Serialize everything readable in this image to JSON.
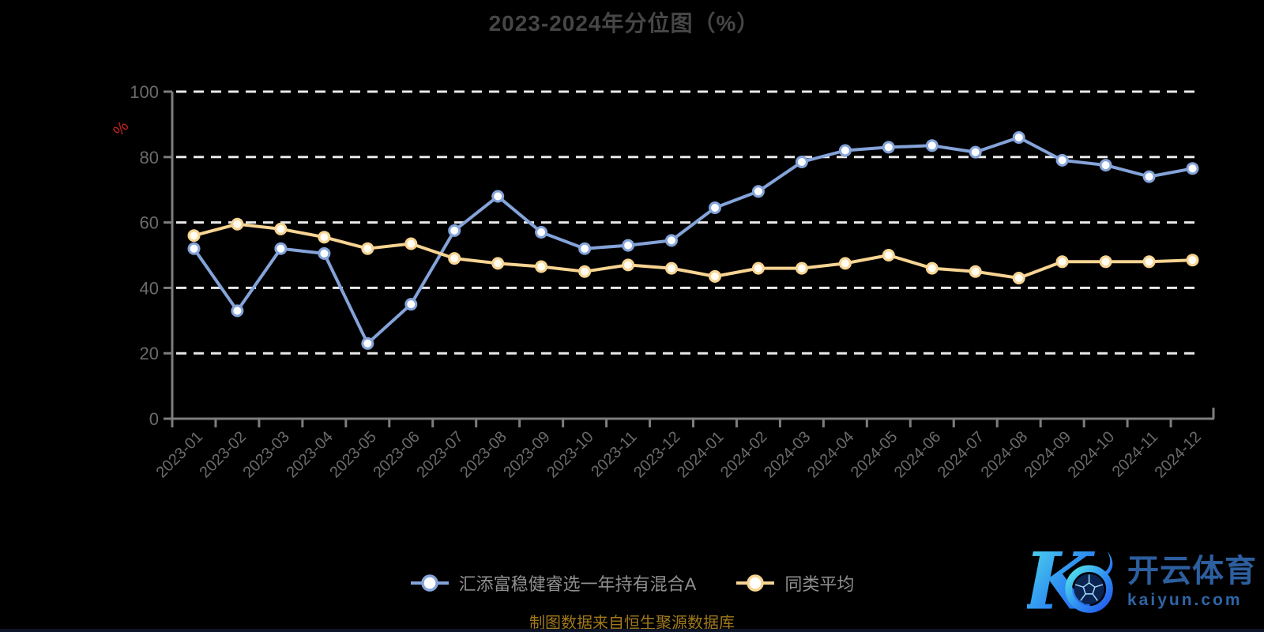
{
  "chart_data": {
    "type": "line",
    "title": "2023-2024年分位图（%）",
    "unit_label": "%",
    "categories": [
      "2023-01",
      "2023-02",
      "2023-03",
      "2023-04",
      "2023-05",
      "2023-06",
      "2023-07",
      "2023-08",
      "2023-09",
      "2023-10",
      "2023-11",
      "2023-12",
      "2024-01",
      "2024-02",
      "2024-03",
      "2024-04",
      "2024-05",
      "2024-06",
      "2024-07",
      "2024-08",
      "2024-09",
      "2024-10",
      "2024-11",
      "2024-12"
    ],
    "series": [
      {
        "name": "汇添富稳健睿选一年持有混合A",
        "color": "#84a3d9",
        "marker_fill": "#ffffff",
        "values": [
          52,
          33,
          52,
          50.5,
          23,
          35,
          57.5,
          68,
          57,
          52,
          53,
          54.5,
          64.5,
          69.5,
          78.5,
          82,
          83,
          83.5,
          81.5,
          86,
          79,
          77.5,
          74,
          76.5
        ]
      },
      {
        "name": "同类平均",
        "color": "#f7d492",
        "marker_fill": "#fffdf4",
        "values": [
          56,
          59.5,
          58,
          55.5,
          52,
          53.5,
          49,
          47.5,
          46.5,
          45,
          47,
          46,
          43.5,
          46,
          46,
          47.5,
          50,
          46,
          45,
          43,
          48,
          48,
          48,
          48.5
        ]
      }
    ],
    "ylim": [
      0,
      100
    ],
    "y_interval": 20,
    "y_tick_labels": [
      "0",
      "20",
      "40",
      "60",
      "80",
      "100"
    ],
    "x_label_rotation": -45,
    "grid": "horizontal-dashed",
    "legend_position": "bottom"
  },
  "caption": "制图数据来自恒生聚源数据库",
  "logo": {
    "brand": "开云体育",
    "domain": "kaiyun.com"
  },
  "colors": {
    "background": "#000000",
    "title": "#464646",
    "axis": "#7d7d7d",
    "tick_label": "#6b6b6b",
    "gridline": "#e9e9e9",
    "legend_text": "#8f8f8f",
    "caption_gold": "#a0791c",
    "percent_red": "#c62222",
    "series_blue": "#84a3d9",
    "series_yellow": "#f7d492",
    "brand_blue": "#2d5f9f"
  }
}
